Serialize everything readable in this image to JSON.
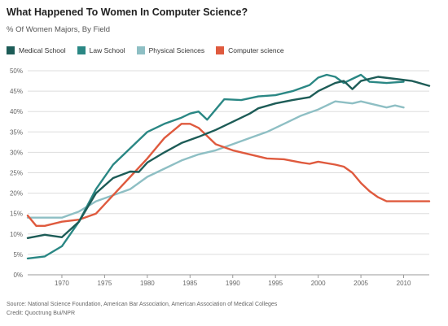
{
  "header": {
    "title": "What Happened To Women In Computer Science?",
    "subtitle": "% Of Women Majors, By Field"
  },
  "footer": {
    "source": "Source: National Science Foundation, American Bar Association, American Association of Medical Colleges",
    "credit": "Credit: Quoctrung Bui/NPR"
  },
  "chart_data": {
    "type": "line",
    "title": "What Happened To Women In Computer Science?",
    "subtitle": "% Of Women Majors, By Field",
    "xlabel": "",
    "ylabel": "",
    "xlim": [
      1966,
      2013
    ],
    "ylim": [
      0,
      50
    ],
    "xticks": [
      1970,
      1975,
      1980,
      1985,
      1990,
      1995,
      2000,
      2005,
      2010
    ],
    "xtick_labels": [
      "1970",
      "1975",
      "1980",
      "1985",
      "1990",
      "1995",
      "2000",
      "2005",
      "2010"
    ],
    "yticks": [
      0,
      5,
      10,
      15,
      20,
      25,
      30,
      35,
      40,
      45,
      50
    ],
    "ytick_labels": [
      "0%",
      "5%",
      "10%",
      "15%",
      "20%",
      "25%",
      "30%",
      "35%",
      "40%",
      "45%",
      "50%"
    ],
    "grid": "horizontal",
    "legend_position": "top-left",
    "series": [
      {
        "name": "Medical School",
        "color": "#1d5c57",
        "points": [
          [
            1966,
            9
          ],
          [
            1968,
            9.8
          ],
          [
            1970,
            9.2
          ],
          [
            1972,
            13
          ],
          [
            1974,
            20
          ],
          [
            1976,
            23.7
          ],
          [
            1978,
            25.3
          ],
          [
            1979,
            25.2
          ],
          [
            1980,
            27.5
          ],
          [
            1982,
            30
          ],
          [
            1984,
            32.3
          ],
          [
            1986,
            33.8
          ],
          [
            1988,
            35.5
          ],
          [
            1990,
            37.5
          ],
          [
            1992,
            39.5
          ],
          [
            1993,
            40.8
          ],
          [
            1995,
            42
          ],
          [
            1997,
            42.8
          ],
          [
            1999,
            43.5
          ],
          [
            2000,
            45
          ],
          [
            2002,
            47
          ],
          [
            2003,
            47.5
          ],
          [
            2004,
            45.5
          ],
          [
            2005,
            47.5
          ],
          [
            2007,
            48.5
          ],
          [
            2009,
            48
          ],
          [
            2011,
            47.5
          ],
          [
            2013,
            46.3
          ]
        ]
      },
      {
        "name": "Law School",
        "color": "#2a8784",
        "points": [
          [
            1966,
            4
          ],
          [
            1968,
            4.5
          ],
          [
            1970,
            7
          ],
          [
            1972,
            13
          ],
          [
            1974,
            21
          ],
          [
            1976,
            27
          ],
          [
            1978,
            31
          ],
          [
            1980,
            35
          ],
          [
            1982,
            37
          ],
          [
            1984,
            38.5
          ],
          [
            1985,
            39.5
          ],
          [
            1986,
            40
          ],
          [
            1987,
            38
          ],
          [
            1988,
            40.5
          ],
          [
            1989,
            43
          ],
          [
            1991,
            42.8
          ],
          [
            1993,
            43.7
          ],
          [
            1995,
            44
          ],
          [
            1997,
            45
          ],
          [
            1999,
            46.5
          ],
          [
            2000,
            48.3
          ],
          [
            2001,
            49
          ],
          [
            2002,
            48.5
          ],
          [
            2003,
            47
          ],
          [
            2004,
            48
          ],
          [
            2005,
            49
          ],
          [
            2006,
            47.3
          ],
          [
            2008,
            47
          ],
          [
            2010,
            47.3
          ]
        ]
      },
      {
        "name": "Physical Sciences",
        "color": "#8ebfc4",
        "points": [
          [
            1966,
            14
          ],
          [
            1968,
            14
          ],
          [
            1970,
            14
          ],
          [
            1972,
            15.5
          ],
          [
            1974,
            18
          ],
          [
            1976,
            19.5
          ],
          [
            1978,
            21
          ],
          [
            1980,
            24
          ],
          [
            1982,
            26
          ],
          [
            1984,
            28
          ],
          [
            1986,
            29.5
          ],
          [
            1988,
            30.5
          ],
          [
            1990,
            32
          ],
          [
            1992,
            33.5
          ],
          [
            1994,
            35
          ],
          [
            1996,
            37
          ],
          [
            1998,
            39
          ],
          [
            2000,
            40.5
          ],
          [
            2002,
            42.5
          ],
          [
            2004,
            42
          ],
          [
            2005,
            42.5
          ],
          [
            2007,
            41.5
          ],
          [
            2008,
            41
          ],
          [
            2009,
            41.5
          ],
          [
            2010,
            41
          ]
        ]
      },
      {
        "name": "Computer science",
        "color": "#df5a3e",
        "points": [
          [
            1966,
            14.5
          ],
          [
            1967,
            12
          ],
          [
            1968,
            12
          ],
          [
            1970,
            13
          ],
          [
            1972,
            13.5
          ],
          [
            1974,
            15
          ],
          [
            1976,
            19.5
          ],
          [
            1978,
            24
          ],
          [
            1980,
            28.5
          ],
          [
            1982,
            33.5
          ],
          [
            1984,
            37
          ],
          [
            1985,
            37
          ],
          [
            1986,
            36
          ],
          [
            1988,
            32
          ],
          [
            1990,
            30.5
          ],
          [
            1992,
            29.5
          ],
          [
            1994,
            28.5
          ],
          [
            1996,
            28.3
          ],
          [
            1998,
            27.5
          ],
          [
            1999,
            27.2
          ],
          [
            2000,
            27.7
          ],
          [
            2002,
            27
          ],
          [
            2003,
            26.5
          ],
          [
            2004,
            25
          ],
          [
            2005,
            22.5
          ],
          [
            2006,
            20.5
          ],
          [
            2007,
            19
          ],
          [
            2008,
            18
          ],
          [
            2010,
            18
          ],
          [
            2012,
            18
          ],
          [
            2013,
            18
          ]
        ]
      }
    ]
  }
}
